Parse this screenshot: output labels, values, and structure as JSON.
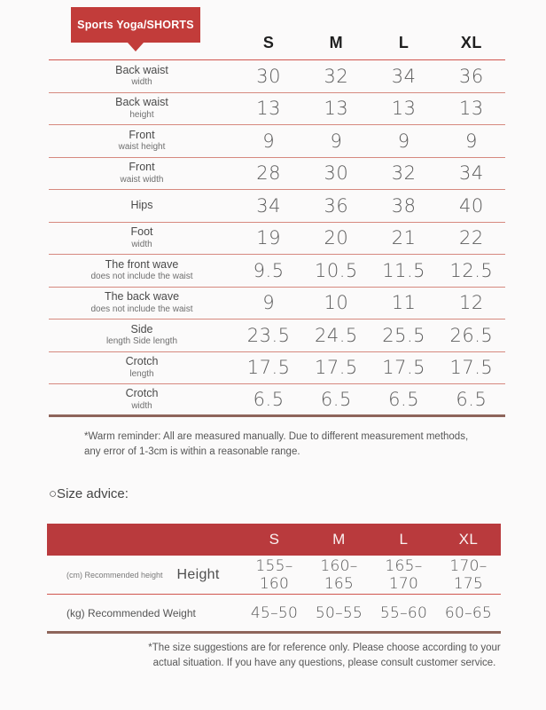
{
  "colors": {
    "badge_red": "#c23c3a",
    "bar_red": "#b93a3d",
    "thin_line": "#d6897f",
    "header_line": "#d1564f",
    "thick_line": "#8e655b"
  },
  "badge": {
    "label": "Sports Yoga/SHORTS"
  },
  "size_table": {
    "columns": [
      "S",
      "M",
      "L",
      "XL"
    ],
    "rows": [
      {
        "label": "Back waist",
        "sublabel": "width",
        "values": [
          "30",
          "32",
          "34",
          "36"
        ]
      },
      {
        "label": "Back waist",
        "sublabel": "height",
        "values": [
          "13",
          "13",
          "13",
          "13"
        ]
      },
      {
        "label": "Front",
        "sublabel": "waist height",
        "values": [
          "9",
          "9",
          "9",
          "9"
        ]
      },
      {
        "label": "Front",
        "sublabel": "waist width",
        "values": [
          "28",
          "30",
          "32",
          "34"
        ]
      },
      {
        "label": "Hips",
        "sublabel": "",
        "values": [
          "34",
          "36",
          "38",
          "40"
        ]
      },
      {
        "label": "Foot",
        "sublabel": "width",
        "values": [
          "19",
          "20",
          "21",
          "22"
        ]
      },
      {
        "label": "The front wave",
        "sublabel": "does not include the waist",
        "values": [
          "9.5",
          "10.5",
          "11.5",
          "12.5"
        ]
      },
      {
        "label": "The back wave",
        "sublabel": "does not include the waist",
        "values": [
          "9",
          "10",
          "11",
          "12"
        ]
      },
      {
        "label": "Side",
        "sublabel": "length Side length",
        "values": [
          "23.5",
          "24.5",
          "25.5",
          "26.5"
        ]
      },
      {
        "label": "Crotch",
        "sublabel": "length",
        "values": [
          "17.5",
          "17.5",
          "17.5",
          "17.5"
        ]
      },
      {
        "label": "Crotch",
        "sublabel": "width",
        "values": [
          "6.5",
          "6.5",
          "6.5",
          "6.5"
        ]
      }
    ],
    "note": "*Warm reminder: All are measured manually. Due to different measurement methods, any error of 1-3cm is within a reasonable range."
  },
  "size_advice": {
    "heading": "○Size advice:",
    "columns": [
      "S",
      "M",
      "L",
      "XL"
    ],
    "rows": [
      {
        "prefix": "(cm) Recommended height",
        "name": "Height",
        "values": [
          "155–160",
          "160–165",
          "165–170",
          "170–175"
        ]
      },
      {
        "prefix": "(kg) Recommended Weight",
        "name": "",
        "values": [
          "45–50",
          "50–55",
          "55–60",
          "60–65"
        ]
      }
    ],
    "note": "*The size suggestions are for reference only. Please choose according to your actual situation. If you have any questions, please consult customer service."
  }
}
